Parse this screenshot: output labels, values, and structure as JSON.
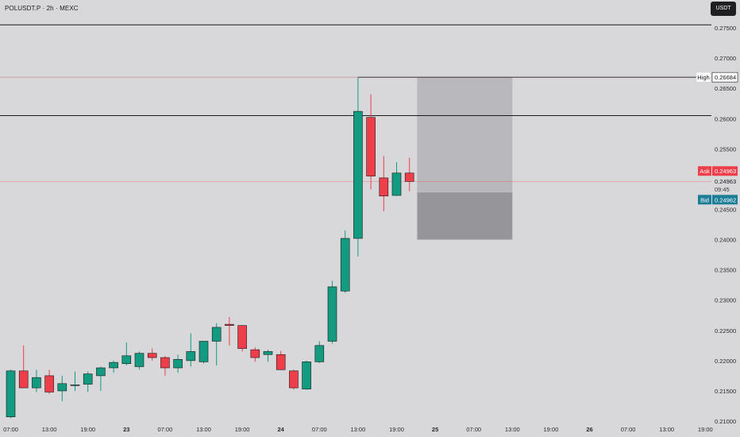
{
  "header": {
    "symbol": "POLUSDT.P · 2h · MEXC",
    "currency": "USDT"
  },
  "colors": {
    "background": "#d8d8db",
    "up": "#129b80",
    "down": "#ee3e4a",
    "horizontal_line": "#1a1a1a",
    "high_line": "#c79a9a",
    "zone_upper": "#b8b8bd",
    "zone_lower": "#95959a",
    "ask_tag": "#ee3e4a",
    "bid_tag": "#1b7d96"
  },
  "chart_data": {
    "type": "candlestick",
    "y_axis": {
      "min": 0.21,
      "max": 0.2775,
      "ticks": [
        "0.27500",
        "0.27000",
        "0.26500",
        "0.26000",
        "0.25500",
        "0.24500",
        "0.24000",
        "0.23500",
        "0.23000",
        "0.22500",
        "0.22000",
        "0.21500",
        "0.21000"
      ]
    },
    "x_axis": {
      "labels": [
        {
          "text": "07:00",
          "bar": 0,
          "bold": false
        },
        {
          "text": "13:00",
          "bar": 3,
          "bold": false
        },
        {
          "text": "19:00",
          "bar": 6,
          "bold": false
        },
        {
          "text": "23",
          "bar": 9,
          "bold": true
        },
        {
          "text": "07:00",
          "bar": 12,
          "bold": false
        },
        {
          "text": "13:00",
          "bar": 15,
          "bold": false
        },
        {
          "text": "19:00",
          "bar": 18,
          "bold": false
        },
        {
          "text": "24",
          "bar": 21,
          "bold": true
        },
        {
          "text": "07:00",
          "bar": 24,
          "bold": false
        },
        {
          "text": "13:00",
          "bar": 27,
          "bold": false
        },
        {
          "text": "19:00",
          "bar": 30,
          "bold": false
        },
        {
          "text": "25",
          "bar": 33,
          "bold": true
        },
        {
          "text": "07:00",
          "bar": 36,
          "bold": false
        },
        {
          "text": "13:00",
          "bar": 39,
          "bold": false
        },
        {
          "text": "19:00",
          "bar": 42,
          "bold": false
        },
        {
          "text": "26",
          "bar": 45,
          "bold": true
        },
        {
          "text": "07:00",
          "bar": 48,
          "bold": false
        },
        {
          "text": "13:00",
          "bar": 51,
          "bold": false
        },
        {
          "text": "19:00",
          "bar": 54,
          "bold": false
        }
      ]
    },
    "candles": [
      {
        "o": 0.2107,
        "h": 0.2185,
        "l": 0.2105,
        "c": 0.2183
      },
      {
        "o": 0.2183,
        "h": 0.2225,
        "l": 0.2155,
        "c": 0.2155
      },
      {
        "o": 0.2155,
        "h": 0.2185,
        "l": 0.2148,
        "c": 0.2172
      },
      {
        "o": 0.2175,
        "h": 0.2185,
        "l": 0.2145,
        "c": 0.2148
      },
      {
        "o": 0.215,
        "h": 0.2175,
        "l": 0.2133,
        "c": 0.2162
      },
      {
        "o": 0.216,
        "h": 0.2182,
        "l": 0.215,
        "c": 0.216
      },
      {
        "o": 0.2161,
        "h": 0.2182,
        "l": 0.2148,
        "c": 0.2178
      },
      {
        "o": 0.2175,
        "h": 0.219,
        "l": 0.215,
        "c": 0.2188
      },
      {
        "o": 0.2188,
        "h": 0.22,
        "l": 0.218,
        "c": 0.2197
      },
      {
        "o": 0.2195,
        "h": 0.223,
        "l": 0.2192,
        "c": 0.2208
      },
      {
        "o": 0.219,
        "h": 0.2215,
        "l": 0.2185,
        "c": 0.2212
      },
      {
        "o": 0.2212,
        "h": 0.222,
        "l": 0.22,
        "c": 0.2205
      },
      {
        "o": 0.2205,
        "h": 0.2208,
        "l": 0.2175,
        "c": 0.2188
      },
      {
        "o": 0.2188,
        "h": 0.221,
        "l": 0.218,
        "c": 0.2202
      },
      {
        "o": 0.22,
        "h": 0.2245,
        "l": 0.219,
        "c": 0.2215
      },
      {
        "o": 0.2198,
        "h": 0.2228,
        "l": 0.2195,
        "c": 0.2232
      },
      {
        "o": 0.2232,
        "h": 0.2262,
        "l": 0.2192,
        "c": 0.2255
      },
      {
        "o": 0.226,
        "h": 0.2272,
        "l": 0.2225,
        "c": 0.2258
      },
      {
        "o": 0.2258,
        "h": 0.2255,
        "l": 0.2215,
        "c": 0.222
      },
      {
        "o": 0.2218,
        "h": 0.2222,
        "l": 0.2198,
        "c": 0.2205
      },
      {
        "o": 0.221,
        "h": 0.2218,
        "l": 0.2198,
        "c": 0.2215
      },
      {
        "o": 0.221,
        "h": 0.2216,
        "l": 0.2185,
        "c": 0.2185
      },
      {
        "o": 0.2183,
        "h": 0.2185,
        "l": 0.2152,
        "c": 0.2155
      },
      {
        "o": 0.2153,
        "h": 0.22,
        "l": 0.2152,
        "c": 0.2198
      },
      {
        "o": 0.2198,
        "h": 0.2232,
        "l": 0.2196,
        "c": 0.2225
      },
      {
        "o": 0.2232,
        "h": 0.2332,
        "l": 0.2228,
        "c": 0.2322
      },
      {
        "o": 0.2315,
        "h": 0.2415,
        "l": 0.2312,
        "c": 0.2402
      },
      {
        "o": 0.2402,
        "h": 0.2668,
        "l": 0.2372,
        "c": 0.2612
      },
      {
        "o": 0.2602,
        "h": 0.264,
        "l": 0.2483,
        "c": 0.2505
      },
      {
        "o": 0.2502,
        "h": 0.2538,
        "l": 0.2447,
        "c": 0.2472
      },
      {
        "o": 0.2473,
        "h": 0.2528,
        "l": 0.2472,
        "c": 0.251
      },
      {
        "o": 0.251,
        "h": 0.2535,
        "l": 0.248,
        "c": 0.2496
      }
    ],
    "horizontal_lines": [
      0.2755,
      0.2605
    ],
    "high": {
      "label": "High",
      "value": "0.26684",
      "price": 0.26684
    },
    "current_price": {
      "value": "0.24963",
      "countdown": "09:45"
    },
    "ask": {
      "label": "Ask",
      "value": "0.24963",
      "price": 0.24963
    },
    "bid": {
      "label": "Bid",
      "value": "0.24962",
      "price": 0.24962
    },
    "short_position": {
      "start_bar": 32,
      "end_bar": 39,
      "stop_loss": 0.26684,
      "entry": 0.2478,
      "take_profit": 0.24
    }
  }
}
